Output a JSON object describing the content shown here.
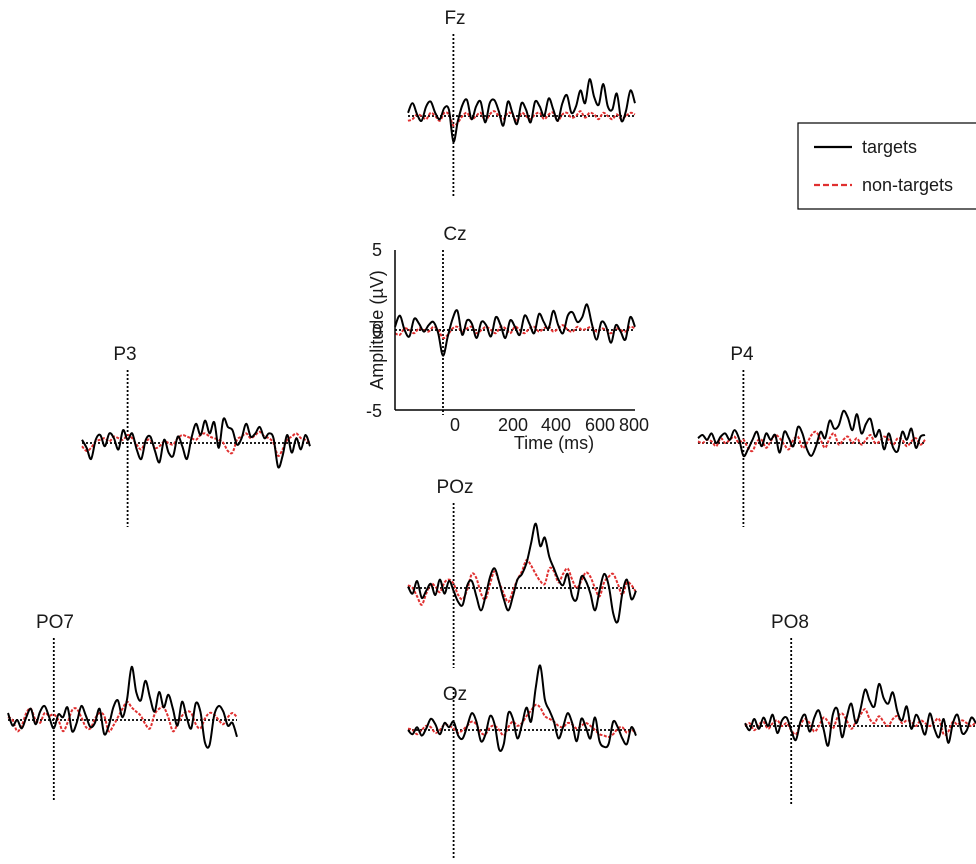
{
  "chart_data": {
    "type": "line",
    "layout": "topographic",
    "legend": {
      "placement": "top-right",
      "entries": [
        {
          "label": "targets",
          "color": "#000000",
          "style": "solid"
        },
        {
          "label": "non-targets",
          "color": "#e03030",
          "style": "dashed"
        }
      ]
    },
    "reference_axes": {
      "channel": "Cz",
      "xlabel": "Time (ms)",
      "ylabel": "Amplitude (µV)",
      "xticks": [
        "0",
        "200",
        "400",
        "600",
        "800"
      ],
      "yticks": [
        "5",
        "0",
        "-5"
      ],
      "xlim": [
        -200,
        800
      ],
      "ylim": [
        -5,
        5
      ]
    },
    "x": [
      -200,
      -180,
      -160,
      -140,
      -120,
      -100,
      -80,
      -60,
      -40,
      -20,
      0,
      20,
      40,
      60,
      80,
      100,
      120,
      140,
      160,
      180,
      200,
      220,
      240,
      260,
      280,
      300,
      320,
      340,
      360,
      380,
      400,
      420,
      440,
      460,
      480,
      500,
      520,
      540,
      560,
      580,
      600,
      620,
      640,
      660,
      680,
      700,
      720,
      740,
      760,
      780,
      800
    ],
    "series_names": [
      "targets",
      "non-targets"
    ],
    "channels": [
      {
        "name": "Fz",
        "targets": [
          0.2,
          0.8,
          0.1,
          -0.3,
          0.6,
          0.9,
          0.2,
          -0.2,
          0.5,
          0.4,
          -1.6,
          -0.3,
          0.7,
          1.0,
          -0.2,
          0.6,
          0.9,
          -0.4,
          0.8,
          1.0,
          0.3,
          -0.6,
          0.9,
          0.2,
          -0.5,
          0.8,
          0.4,
          -0.4,
          0.9,
          0.6,
          0.0,
          1.1,
          0.4,
          -0.3,
          0.8,
          1.3,
          0.2,
          0.6,
          1.6,
          0.8,
          2.3,
          1.2,
          0.7,
          2.0,
          0.6,
          0.4,
          1.4,
          -0.3,
          0.3,
          1.6,
          0.8
        ],
        "nontargets": [
          -0.3,
          -0.2,
          0.1,
          0.0,
          -0.2,
          0.2,
          0.0,
          -0.3,
          0.2,
          0.1,
          -0.6,
          -0.4,
          0.0,
          0.2,
          -0.2,
          0.0,
          0.2,
          -0.3,
          0.1,
          0.3,
          0.0,
          -0.2,
          0.2,
          0.1,
          -0.3,
          0.2,
          0.0,
          -0.2,
          0.1,
          0.2,
          -0.2,
          0.1,
          0.2,
          -0.3,
          0.1,
          0.2,
          -0.1,
          0.0,
          0.3,
          -0.1,
          0.2,
          0.1,
          -0.2,
          0.2,
          0.0,
          -0.2,
          0.1,
          -0.2,
          0.0,
          0.2,
          0.1
        ]
      },
      {
        "name": "Cz",
        "targets": [
          0.2,
          0.9,
          0.0,
          -0.4,
          0.7,
          0.4,
          -0.1,
          0.3,
          0.5,
          -0.2,
          -1.6,
          -0.4,
          0.7,
          1.2,
          -0.3,
          0.6,
          0.4,
          -0.5,
          0.5,
          0.3,
          -0.4,
          0.8,
          0.3,
          -0.5,
          0.6,
          0.2,
          -0.3,
          0.9,
          0.4,
          -0.2,
          1.0,
          0.5,
          0.1,
          1.2,
          0.3,
          -0.2,
          0.9,
          1.1,
          0.5,
          0.8,
          1.6,
          0.4,
          -0.6,
          0.5,
          0.2,
          -0.8,
          0.3,
          -0.1,
          -0.6,
          0.8,
          0.2
        ],
        "nontargets": [
          -0.2,
          -0.3,
          0.1,
          0.0,
          -0.2,
          0.1,
          0.0,
          -0.1,
          0.2,
          0.0,
          -0.5,
          -0.3,
          0.1,
          0.2,
          -0.1,
          0.1,
          0.2,
          -0.2,
          0.0,
          0.2,
          0.0,
          -0.2,
          0.2,
          0.1,
          -0.2,
          0.2,
          0.0,
          -0.2,
          0.1,
          0.2,
          -0.1,
          0.1,
          0.2,
          -0.1,
          0.1,
          0.3,
          0.0,
          -0.1,
          0.2,
          0.0,
          0.1,
          0.2,
          -0.1,
          0.1,
          0.0,
          -0.2,
          0.1,
          0.0,
          -0.1,
          0.2,
          0.1
        ]
      },
      {
        "name": "P3",
        "targets": [
          0.2,
          -0.3,
          -1.0,
          0.2,
          0.5,
          -0.2,
          0.6,
          0.3,
          -0.4,
          0.8,
          0.2,
          0.6,
          -0.4,
          -1.0,
          0.2,
          0.4,
          -0.5,
          -1.2,
          0.2,
          -0.6,
          -0.8,
          0.4,
          -0.2,
          -1.0,
          0.3,
          1.2,
          0.5,
          1.4,
          0.6,
          1.3,
          -0.3,
          1.5,
          1.0,
          0.8,
          -0.1,
          0.3,
          1.2,
          0.4,
          0.6,
          1.0,
          0.3,
          0.6,
          0.3,
          -1.5,
          -0.8,
          0.5,
          -0.6,
          0.3,
          -0.4,
          0.5,
          -0.2
        ],
        "nontargets": [
          -0.2,
          -0.5,
          -0.3,
          0.1,
          0.2,
          0.3,
          0.1,
          0.4,
          0.3,
          0.2,
          0.5,
          0.3,
          -0.1,
          -0.4,
          0.1,
          0.2,
          -0.3,
          -0.2,
          0.1,
          0.0,
          -0.1,
          0.3,
          0.5,
          0.4,
          0.3,
          0.2,
          0.5,
          0.6,
          0.4,
          0.3,
          0.2,
          0.0,
          -0.5,
          -0.6,
          0.2,
          0.4,
          0.6,
          0.3,
          0.5,
          0.7,
          0.4,
          0.3,
          0.0,
          -0.8,
          -0.4,
          0.2,
          0.4,
          0.6,
          0.3,
          0.2,
          0.0
        ]
      },
      {
        "name": "P4",
        "targets": [
          0.3,
          0.5,
          0.2,
          0.6,
          0.0,
          0.4,
          0.6,
          0.2,
          0.8,
          0.3,
          -0.8,
          -0.4,
          0.2,
          0.7,
          -0.2,
          0.6,
          0.2,
          0.5,
          -0.6,
          0.7,
          0.3,
          -0.2,
          1.0,
          0.6,
          -0.4,
          -0.8,
          -0.2,
          0.7,
          0.3,
          1.4,
          0.9,
          1.1,
          2.0,
          1.6,
          0.8,
          1.8,
          0.6,
          1.2,
          1.5,
          0.4,
          0.8,
          -0.4,
          0.6,
          -0.3,
          -0.5,
          0.7,
          0.2,
          0.9,
          -0.3,
          0.4,
          0.5
        ],
        "nontargets": [
          0.1,
          0.0,
          0.2,
          0.1,
          -0.2,
          0.3,
          0.0,
          0.2,
          0.4,
          0.0,
          0.2,
          -0.3,
          -0.5,
          0.1,
          0.2,
          -0.3,
          0.1,
          0.5,
          0.3,
          -0.1,
          -0.4,
          0.2,
          0.4,
          -0.3,
          0.0,
          0.5,
          0.7,
          0.2,
          -0.3,
          0.3,
          0.6,
          -0.1,
          0.2,
          0.4,
          0.0,
          0.3,
          -0.1,
          0.2,
          0.5,
          0.0,
          0.1,
          0.4,
          0.2,
          -0.1,
          0.3,
          0.2,
          -0.2,
          0.1,
          0.3,
          -0.1,
          0.2
        ]
      },
      {
        "name": "POz",
        "targets": [
          0.1,
          -0.4,
          0.5,
          -0.7,
          -0.2,
          0.3,
          -0.5,
          0.6,
          -0.4,
          0.5,
          -0.2,
          -1.0,
          -1.2,
          0.2,
          0.5,
          -0.6,
          -1.6,
          -0.6,
          0.8,
          1.4,
          0.4,
          -0.8,
          -1.6,
          -0.6,
          0.6,
          1.0,
          1.8,
          3.2,
          4.6,
          3.0,
          3.6,
          2.2,
          1.4,
          0.6,
          0.2,
          1.0,
          -0.6,
          -0.8,
          0.8,
          0.5,
          -0.4,
          -1.6,
          -0.2,
          1.0,
          0.2,
          -1.8,
          -2.4,
          -0.4,
          0.6,
          -0.8,
          -0.2
        ],
        "nontargets": [
          0.2,
          0.0,
          -0.6,
          -1.2,
          -0.4,
          0.3,
          0.1,
          -0.3,
          0.4,
          0.6,
          0.3,
          -0.5,
          -0.8,
          -0.1,
          1.0,
          0.7,
          -0.4,
          -0.8,
          0.3,
          1.2,
          0.4,
          -0.4,
          -1.0,
          -0.2,
          0.6,
          1.2,
          2.0,
          1.6,
          1.0,
          0.5,
          0.3,
          1.4,
          1.2,
          0.4,
          1.0,
          1.4,
          0.6,
          0.0,
          0.5,
          1.1,
          0.8,
          0.0,
          -0.6,
          0.4,
          0.8,
          1.0,
          0.3,
          -0.5,
          0.4,
          0.2,
          -0.3
        ]
      },
      {
        "name": "PO7",
        "targets": [
          0.5,
          -0.4,
          0.0,
          -0.6,
          0.2,
          0.8,
          -0.3,
          0.6,
          1.0,
          0.2,
          -0.6,
          0.4,
          0.2,
          0.9,
          -0.8,
          -0.2,
          1.0,
          0.3,
          -0.5,
          -0.2,
          0.8,
          -1.0,
          -0.4,
          0.9,
          1.4,
          0.2,
          1.5,
          3.8,
          2.0,
          1.4,
          2.8,
          1.6,
          0.6,
          2.0,
          0.9,
          1.8,
          0.8,
          -0.4,
          1.3,
          0.2,
          -0.6,
          1.2,
          0.6,
          -1.6,
          -1.8,
          0.3,
          1.0,
          0.6,
          -0.4,
          -0.2,
          -1.2
        ],
        "nontargets": [
          0.2,
          0.0,
          -0.8,
          -0.4,
          0.5,
          0.8,
          0.0,
          -0.2,
          0.5,
          0.3,
          0.4,
          0.0,
          -0.8,
          -0.2,
          0.7,
          0.8,
          0.2,
          -0.5,
          -0.6,
          0.1,
          0.5,
          0.3,
          -0.8,
          -0.4,
          0.2,
          0.8,
          1.3,
          0.9,
          0.6,
          0.3,
          -0.3,
          -0.6,
          0.4,
          0.8,
          0.9,
          0.2,
          -0.8,
          -0.3,
          0.3,
          0.6,
          0.5,
          -0.3,
          -0.6,
          0.1,
          0.5,
          0.4,
          0.0,
          -0.3,
          0.2,
          0.5,
          0.2
        ]
      },
      {
        "name": "Oz",
        "targets": [
          0.0,
          -0.3,
          0.2,
          -0.4,
          0.1,
          0.8,
          0.4,
          -0.3,
          0.5,
          0.2,
          0.6,
          -0.4,
          -0.6,
          0.3,
          1.2,
          0.6,
          -0.8,
          -0.3,
          1.0,
          0.4,
          -1.4,
          -1.0,
          1.2,
          0.8,
          -0.6,
          0.4,
          1.6,
          0.6,
          3.0,
          4.6,
          2.2,
          1.4,
          0.6,
          -0.6,
          0.2,
          1.2,
          0.5,
          -0.8,
          0.8,
          0.2,
          -0.6,
          0.9,
          -0.8,
          -1.2,
          -1.0,
          0.6,
          0.2,
          -0.6,
          -1.0,
          0.2,
          -0.4
        ],
        "nontargets": [
          0.1,
          0.0,
          -0.3,
          0.0,
          0.3,
          0.2,
          -0.2,
          0.0,
          0.4,
          0.3,
          0.1,
          -0.2,
          0.0,
          0.3,
          0.6,
          0.4,
          -0.2,
          -0.3,
          0.2,
          0.3,
          0.0,
          -0.4,
          0.2,
          0.6,
          0.3,
          0.5,
          1.0,
          1.4,
          1.8,
          1.6,
          1.0,
          0.8,
          0.6,
          0.3,
          0.2,
          0.5,
          0.4,
          0.1,
          0.3,
          0.5,
          0.3,
          0.0,
          -0.3,
          -0.4,
          -0.5,
          -0.3,
          0.1,
          0.2,
          -0.2,
          0.0,
          -0.2
        ]
      },
      {
        "name": "PO8",
        "targets": [
          0.2,
          -0.3,
          0.5,
          -0.2,
          0.6,
          0.0,
          0.8,
          -0.5,
          0.4,
          0.6,
          -0.3,
          -1.0,
          0.3,
          0.8,
          -0.4,
          0.6,
          1.1,
          -0.2,
          -1.4,
          0.8,
          1.2,
          -0.8,
          0.6,
          1.6,
          0.2,
          1.2,
          2.6,
          1.8,
          1.4,
          3.0,
          2.0,
          1.6,
          2.4,
          1.0,
          0.4,
          1.4,
          -0.2,
          0.8,
          0.2,
          -0.6,
          0.9,
          -0.2,
          -0.8,
          0.5,
          -1.2,
          0.2,
          0.8,
          -0.5,
          -0.3,
          0.6,
          0.2
        ],
        "nontargets": [
          0.0,
          0.2,
          -0.3,
          0.1,
          0.3,
          -0.2,
          0.2,
          0.4,
          0.0,
          0.2,
          -0.3,
          -0.6,
          0.1,
          0.5,
          0.2,
          -0.4,
          0.0,
          0.6,
          0.3,
          -0.2,
          0.6,
          0.9,
          0.4,
          -0.2,
          0.3,
          0.8,
          1.2,
          0.5,
          0.2,
          0.7,
          0.3,
          0.0,
          0.5,
          0.7,
          0.2,
          0.4,
          0.3,
          0.0,
          0.4,
          0.2,
          0.0,
          0.3,
          0.5,
          -0.6,
          -0.4,
          0.3,
          0.1,
          0.4,
          0.2,
          0.0,
          0.3
        ]
      }
    ]
  }
}
